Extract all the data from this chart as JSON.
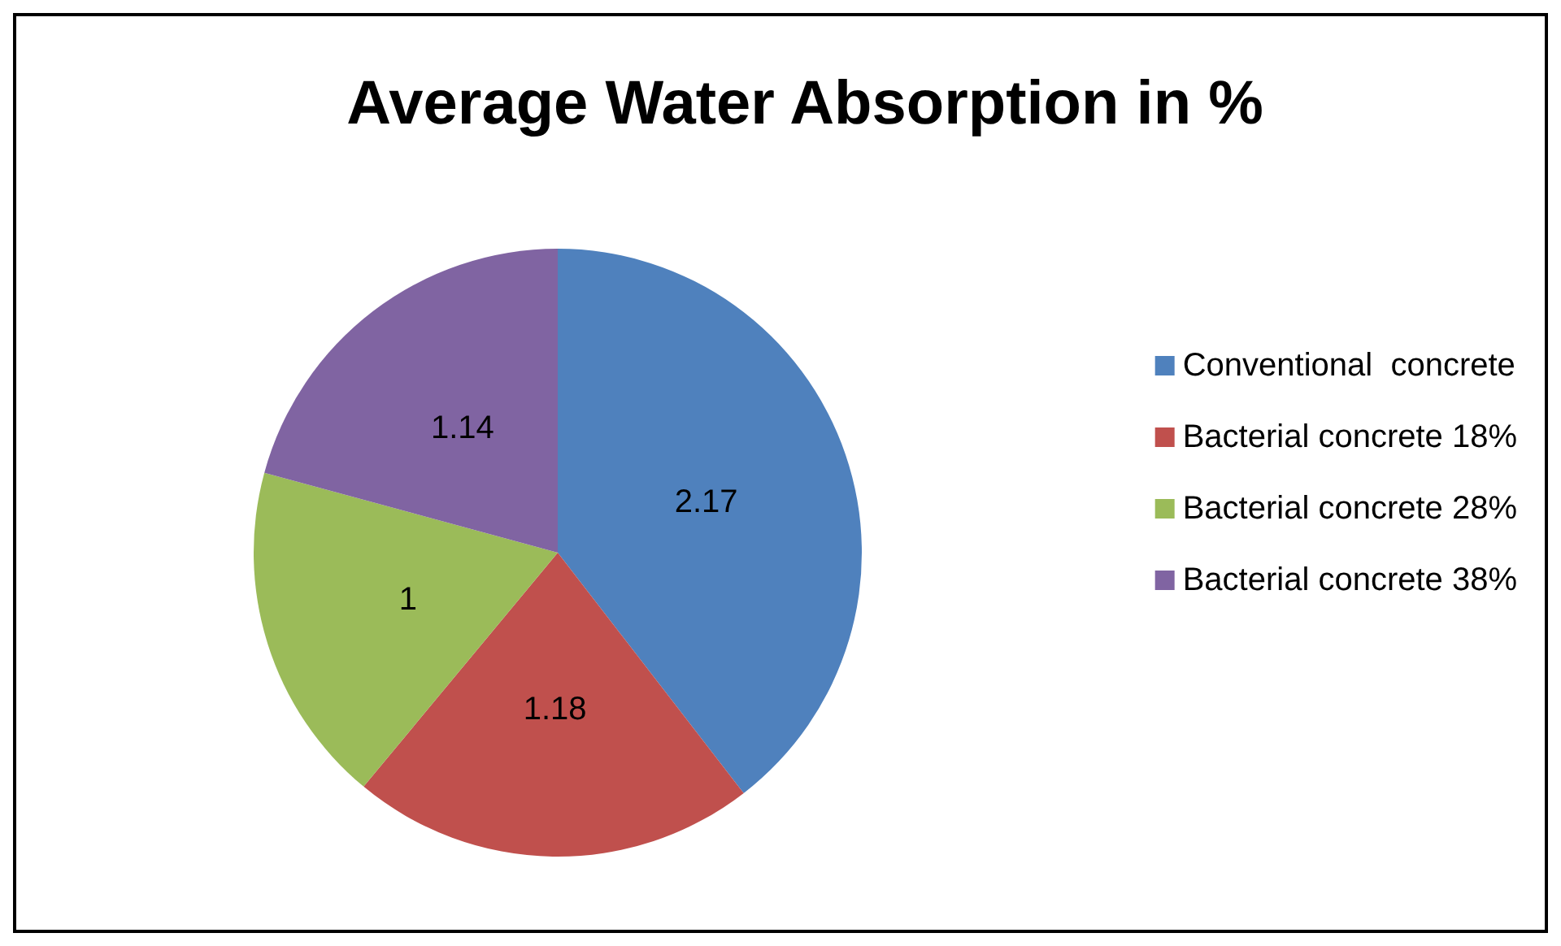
{
  "chart_data": {
    "type": "pie",
    "title": "Average Water Absorption in %",
    "categories": [
      "Conventional  concrete",
      "Bacterial concrete 18%",
      "Bacterial concrete 28%",
      "Bacterial concrete 38%"
    ],
    "values": [
      2.17,
      1.18,
      1,
      1.14
    ],
    "colors": [
      "#4f81bd",
      "#c0504d",
      "#9bbb59",
      "#8064a2"
    ],
    "data_labels": true,
    "legend": "right"
  }
}
